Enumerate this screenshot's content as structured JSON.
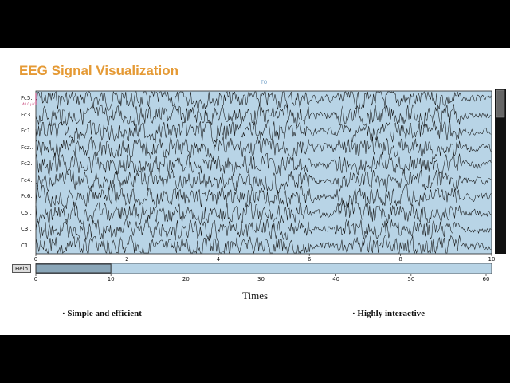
{
  "slide": {
    "title": "EEG Signal Visualization",
    "annotation": "TO",
    "scale_label": "40.0 µV",
    "help_label": "Help",
    "xlabel": "Times",
    "bullets": [
      "· Simple and efficient",
      "· Highly interactive"
    ]
  },
  "chart_data": {
    "type": "line",
    "channels": [
      "Fc5..",
      "Fc3..",
      "Fc1..",
      "Fcz..",
      "Fc2..",
      "Fc4..",
      "Fc6..",
      "C5..",
      "C3..",
      "C1.."
    ],
    "x_ticks": [
      "0",
      "2",
      "4",
      "6",
      "8",
      "10"
    ],
    "xlim": [
      0,
      10
    ],
    "overview_ticks": [
      "0",
      "10",
      "20",
      "30",
      "40",
      "50",
      "60"
    ],
    "overview_range": [
      0,
      60
    ],
    "overview_window": [
      0,
      10
    ],
    "xlabel": "Times",
    "background": "#b8d4e6",
    "trace_color": "#111111"
  },
  "colors": {
    "title": "#e59a35",
    "plot_bg": "#b8d4e6",
    "overview_window": "#8aa6b8"
  }
}
